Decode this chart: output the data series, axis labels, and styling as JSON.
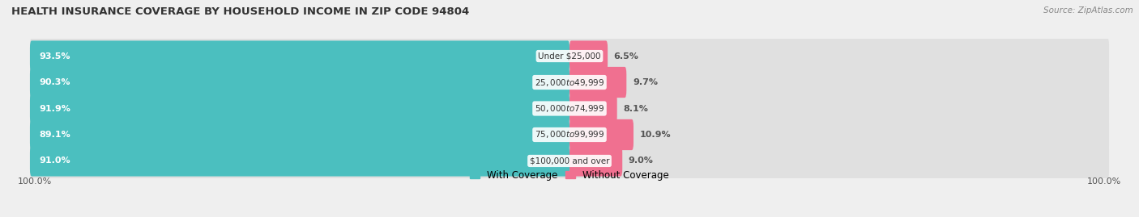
{
  "title": "HEALTH INSURANCE COVERAGE BY HOUSEHOLD INCOME IN ZIP CODE 94804",
  "source": "Source: ZipAtlas.com",
  "categories": [
    "Under $25,000",
    "$25,000 to $49,999",
    "$50,000 to $74,999",
    "$75,000 to $99,999",
    "$100,000 and over"
  ],
  "with_coverage": [
    93.5,
    90.3,
    91.9,
    89.1,
    91.0
  ],
  "without_coverage": [
    6.5,
    9.7,
    8.1,
    10.9,
    9.0
  ],
  "color_with": "#4BBFBF",
  "color_without": "#F07090",
  "bg_color": "#efefef",
  "bar_bg_color": "#e0e0e0",
  "bar_height": 0.62,
  "legend_with": "With Coverage",
  "legend_without": "Without Coverage",
  "x_left_label": "100.0%",
  "x_right_label": "100.0%",
  "title_fontsize": 9.5,
  "source_fontsize": 7.5,
  "label_fontsize": 8.0,
  "cat_fontsize": 7.5,
  "pct_fontsize": 8.0
}
